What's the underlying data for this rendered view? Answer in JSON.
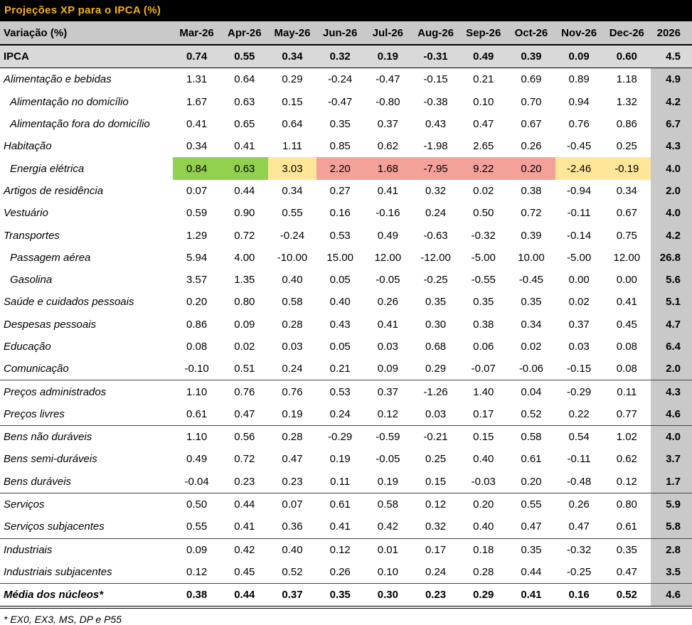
{
  "title": "Projeções XP para o IPCA (%)",
  "header": {
    "label": "Variação (%)",
    "months": [
      "Mar-26",
      "Apr-26",
      "May-26",
      "Jun-26",
      "Jul-26",
      "Aug-26",
      "Sep-26",
      "Oct-26",
      "Nov-26",
      "Dec-26"
    ],
    "year": "2026"
  },
  "table": {
    "rows": [
      {
        "label": "IPCA",
        "values": [
          "0.74",
          "0.55",
          "0.34",
          "0.32",
          "0.19",
          "-0.31",
          "0.49",
          "0.39",
          "0.09",
          "0.60"
        ],
        "year": "4.5"
      },
      {
        "label": "Alimentação e bebidas",
        "values": [
          "1.31",
          "0.64",
          "0.29",
          "-0.24",
          "-0.47",
          "-0.15",
          "0.21",
          "0.69",
          "0.89",
          "1.18"
        ],
        "year": "4.9"
      },
      {
        "label": "Alimentação no domicílio",
        "values": [
          "1.67",
          "0.63",
          "0.15",
          "-0.47",
          "-0.80",
          "-0.38",
          "0.10",
          "0.70",
          "0.94",
          "1.32"
        ],
        "year": "4.2"
      },
      {
        "label": "Alimentação fora do domicílio",
        "values": [
          "0.41",
          "0.65",
          "0.64",
          "0.35",
          "0.37",
          "0.43",
          "0.47",
          "0.67",
          "0.76",
          "0.86"
        ],
        "year": "6.7"
      },
      {
        "label": "Habitação",
        "values": [
          "0.34",
          "0.41",
          "1.11",
          "0.85",
          "0.62",
          "-1.98",
          "2.65",
          "0.26",
          "-0.45",
          "0.25"
        ],
        "year": "4.3"
      },
      {
        "label": "Energia elétrica",
        "values": [
          "0.84",
          "0.63",
          "3.03",
          "2.20",
          "1.68",
          "-7.95",
          "9.22",
          "0.20",
          "-2.46",
          "-0.19"
        ],
        "year": "4.0"
      },
      {
        "label": "Artigos de residência",
        "values": [
          "0.07",
          "0.44",
          "0.34",
          "0.27",
          "0.41",
          "0.32",
          "0.02",
          "0.38",
          "-0.94",
          "0.34"
        ],
        "year": "2.0"
      },
      {
        "label": "Vestuário",
        "values": [
          "0.59",
          "0.90",
          "0.55",
          "0.16",
          "-0.16",
          "0.24",
          "0.50",
          "0.72",
          "-0.11",
          "0.67"
        ],
        "year": "4.0"
      },
      {
        "label": "Transportes",
        "values": [
          "1.29",
          "0.72",
          "-0.24",
          "0.53",
          "0.49",
          "-0.63",
          "-0.32",
          "0.39",
          "-0.14",
          "0.75"
        ],
        "year": "4.2"
      },
      {
        "label": "Passagem aérea",
        "values": [
          "5.94",
          "4.00",
          "-10.00",
          "15.00",
          "12.00",
          "-12.00",
          "-5.00",
          "10.00",
          "-5.00",
          "12.00"
        ],
        "year": "26.8"
      },
      {
        "label": "Gasolina",
        "values": [
          "3.57",
          "1.35",
          "0.40",
          "0.05",
          "-0.05",
          "-0.25",
          "-0.55",
          "-0.45",
          "0.00",
          "0.00"
        ],
        "year": "5.6"
      },
      {
        "label": "Saúde e cuidados pessoais",
        "values": [
          "0.20",
          "0.80",
          "0.58",
          "0.40",
          "0.26",
          "0.35",
          "0.35",
          "0.35",
          "0.02",
          "0.41"
        ],
        "year": "5.1"
      },
      {
        "label": "Despesas pessoais",
        "values": [
          "0.86",
          "0.09",
          "0.28",
          "0.43",
          "0.41",
          "0.30",
          "0.38",
          "0.34",
          "0.37",
          "0.45"
        ],
        "year": "4.7"
      },
      {
        "label": "Educação",
        "values": [
          "0.08",
          "0.02",
          "0.03",
          "0.05",
          "0.03",
          "0.68",
          "0.06",
          "0.02",
          "0.03",
          "0.08"
        ],
        "year": "6.4"
      },
      {
        "label": "Comunicação",
        "values": [
          "-0.10",
          "0.51",
          "0.24",
          "0.21",
          "0.09",
          "0.29",
          "-0.07",
          "-0.06",
          "-0.15",
          "0.08"
        ],
        "year": "2.0"
      },
      {
        "label": "Preços administrados",
        "values": [
          "1.10",
          "0.76",
          "0.76",
          "0.53",
          "0.37",
          "-1.26",
          "1.40",
          "0.04",
          "-0.29",
          "0.11"
        ],
        "year": "4.3"
      },
      {
        "label": "Preços livres",
        "values": [
          "0.61",
          "0.47",
          "0.19",
          "0.24",
          "0.12",
          "0.03",
          "0.17",
          "0.52",
          "0.22",
          "0.77"
        ],
        "year": "4.6"
      },
      {
        "label": "Bens não duráveis",
        "values": [
          "1.10",
          "0.56",
          "0.28",
          "-0.29",
          "-0.59",
          "-0.21",
          "0.15",
          "0.58",
          "0.54",
          "1.02"
        ],
        "year": "4.0"
      },
      {
        "label": "Bens semi-duráveis",
        "values": [
          "0.49",
          "0.72",
          "0.47",
          "0.19",
          "-0.05",
          "0.25",
          "0.40",
          "0.61",
          "-0.11",
          "0.62"
        ],
        "year": "3.7"
      },
      {
        "label": "Bens duráveis",
        "values": [
          "-0.04",
          "0.23",
          "0.23",
          "0.11",
          "0.19",
          "0.15",
          "-0.03",
          "0.20",
          "-0.48",
          "0.12"
        ],
        "year": "1.7"
      },
      {
        "label": "Serviços",
        "values": [
          "0.50",
          "0.44",
          "0.07",
          "0.61",
          "0.58",
          "0.12",
          "0.20",
          "0.55",
          "0.26",
          "0.80"
        ],
        "year": "5.9"
      },
      {
        "label": "Serviços subjacentes",
        "values": [
          "0.55",
          "0.41",
          "0.36",
          "0.41",
          "0.42",
          "0.32",
          "0.40",
          "0.47",
          "0.47",
          "0.61"
        ],
        "year": "5.8"
      },
      {
        "label": "Industriais",
        "values": [
          "0.09",
          "0.42",
          "0.40",
          "0.12",
          "0.01",
          "0.17",
          "0.18",
          "0.35",
          "-0.32",
          "0.35"
        ],
        "year": "2.8"
      },
      {
        "label": "Industriais subjacentes",
        "values": [
          "0.12",
          "0.45",
          "0.52",
          "0.26",
          "0.10",
          "0.24",
          "0.28",
          "0.44",
          "-0.25",
          "0.47"
        ],
        "year": "3.5"
      },
      {
        "label": "Média dos núcleos*",
        "values": [
          "0.38",
          "0.44",
          "0.37",
          "0.35",
          "0.30",
          "0.23",
          "0.29",
          "0.41",
          "0.16",
          "0.52"
        ],
        "year": "4.6"
      }
    ]
  },
  "footnote": "* EX0, EX3, MS, DP e P55"
}
